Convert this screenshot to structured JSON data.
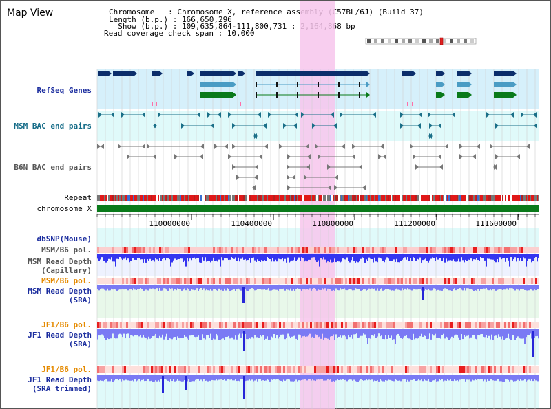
{
  "title": "Map View",
  "info": {
    "chromosome_line": "Chromosome   : Chromosome X, reference assembly (C57BL/6J) (Build 37)",
    "length_line": "Length (b.p.) : 166,650,296",
    "show_line": "  Show (b.p.) : 109,635,864-111,800,731 : 2,164,868 bp",
    "coverage_line": "Read coverage check span : 10,000"
  },
  "labels": {
    "refseq": "RefSeq Genes",
    "msm_bac": "MSM BAC end pairs",
    "b6n_bac": "B6N BAC end pairs",
    "repeat": "Repeat",
    "chromosome": "chromosome X",
    "dbsnp": "dbSNP(Mouse)",
    "msm_b6_pol_cap": "MSM/B6 pol.",
    "msm_depth_cap_1": "MSM Read Depth",
    "msm_depth_cap_2": "(Capillary)",
    "msm_b6_pol_sra": "MSM/B6 pol.",
    "msm_depth_sra_1": "MSM Read Depth",
    "msm_depth_sra_2": "(SRA)",
    "jf1_b6_pol_1": "JF1/B6 pol.",
    "jf1_depth_1": "JF1 Read Depth",
    "jf1_depth_2": "(SRA)",
    "jf1_b6_pol_2": "JF1/B6 pol.",
    "jf1_trim_1": "JF1 Read Depth",
    "jf1_trim_2": "(SRA trimmed)"
  },
  "axis": {
    "ticks": [
      "110000000",
      "110400000",
      "110800000",
      "111200000",
      "111600000"
    ]
  },
  "colors": {
    "navy": "#0b2d6b",
    "teal": "#1a6f88",
    "green": "#0a7a1a",
    "highlight": "#f7c6ec",
    "light_blue_bg": "#d6f0fb",
    "light_cyan_bg": "#e0fafa",
    "lavender_bg": "#eef2ff",
    "pol_red": "#e83a3a",
    "depth_blue": "#3535f0",
    "depth_light": "#7a7af4",
    "label_navy": "#1a2c9e",
    "label_teal": "#126a86",
    "label_orange": "#e58a00",
    "label_grey": "#555555"
  }
}
